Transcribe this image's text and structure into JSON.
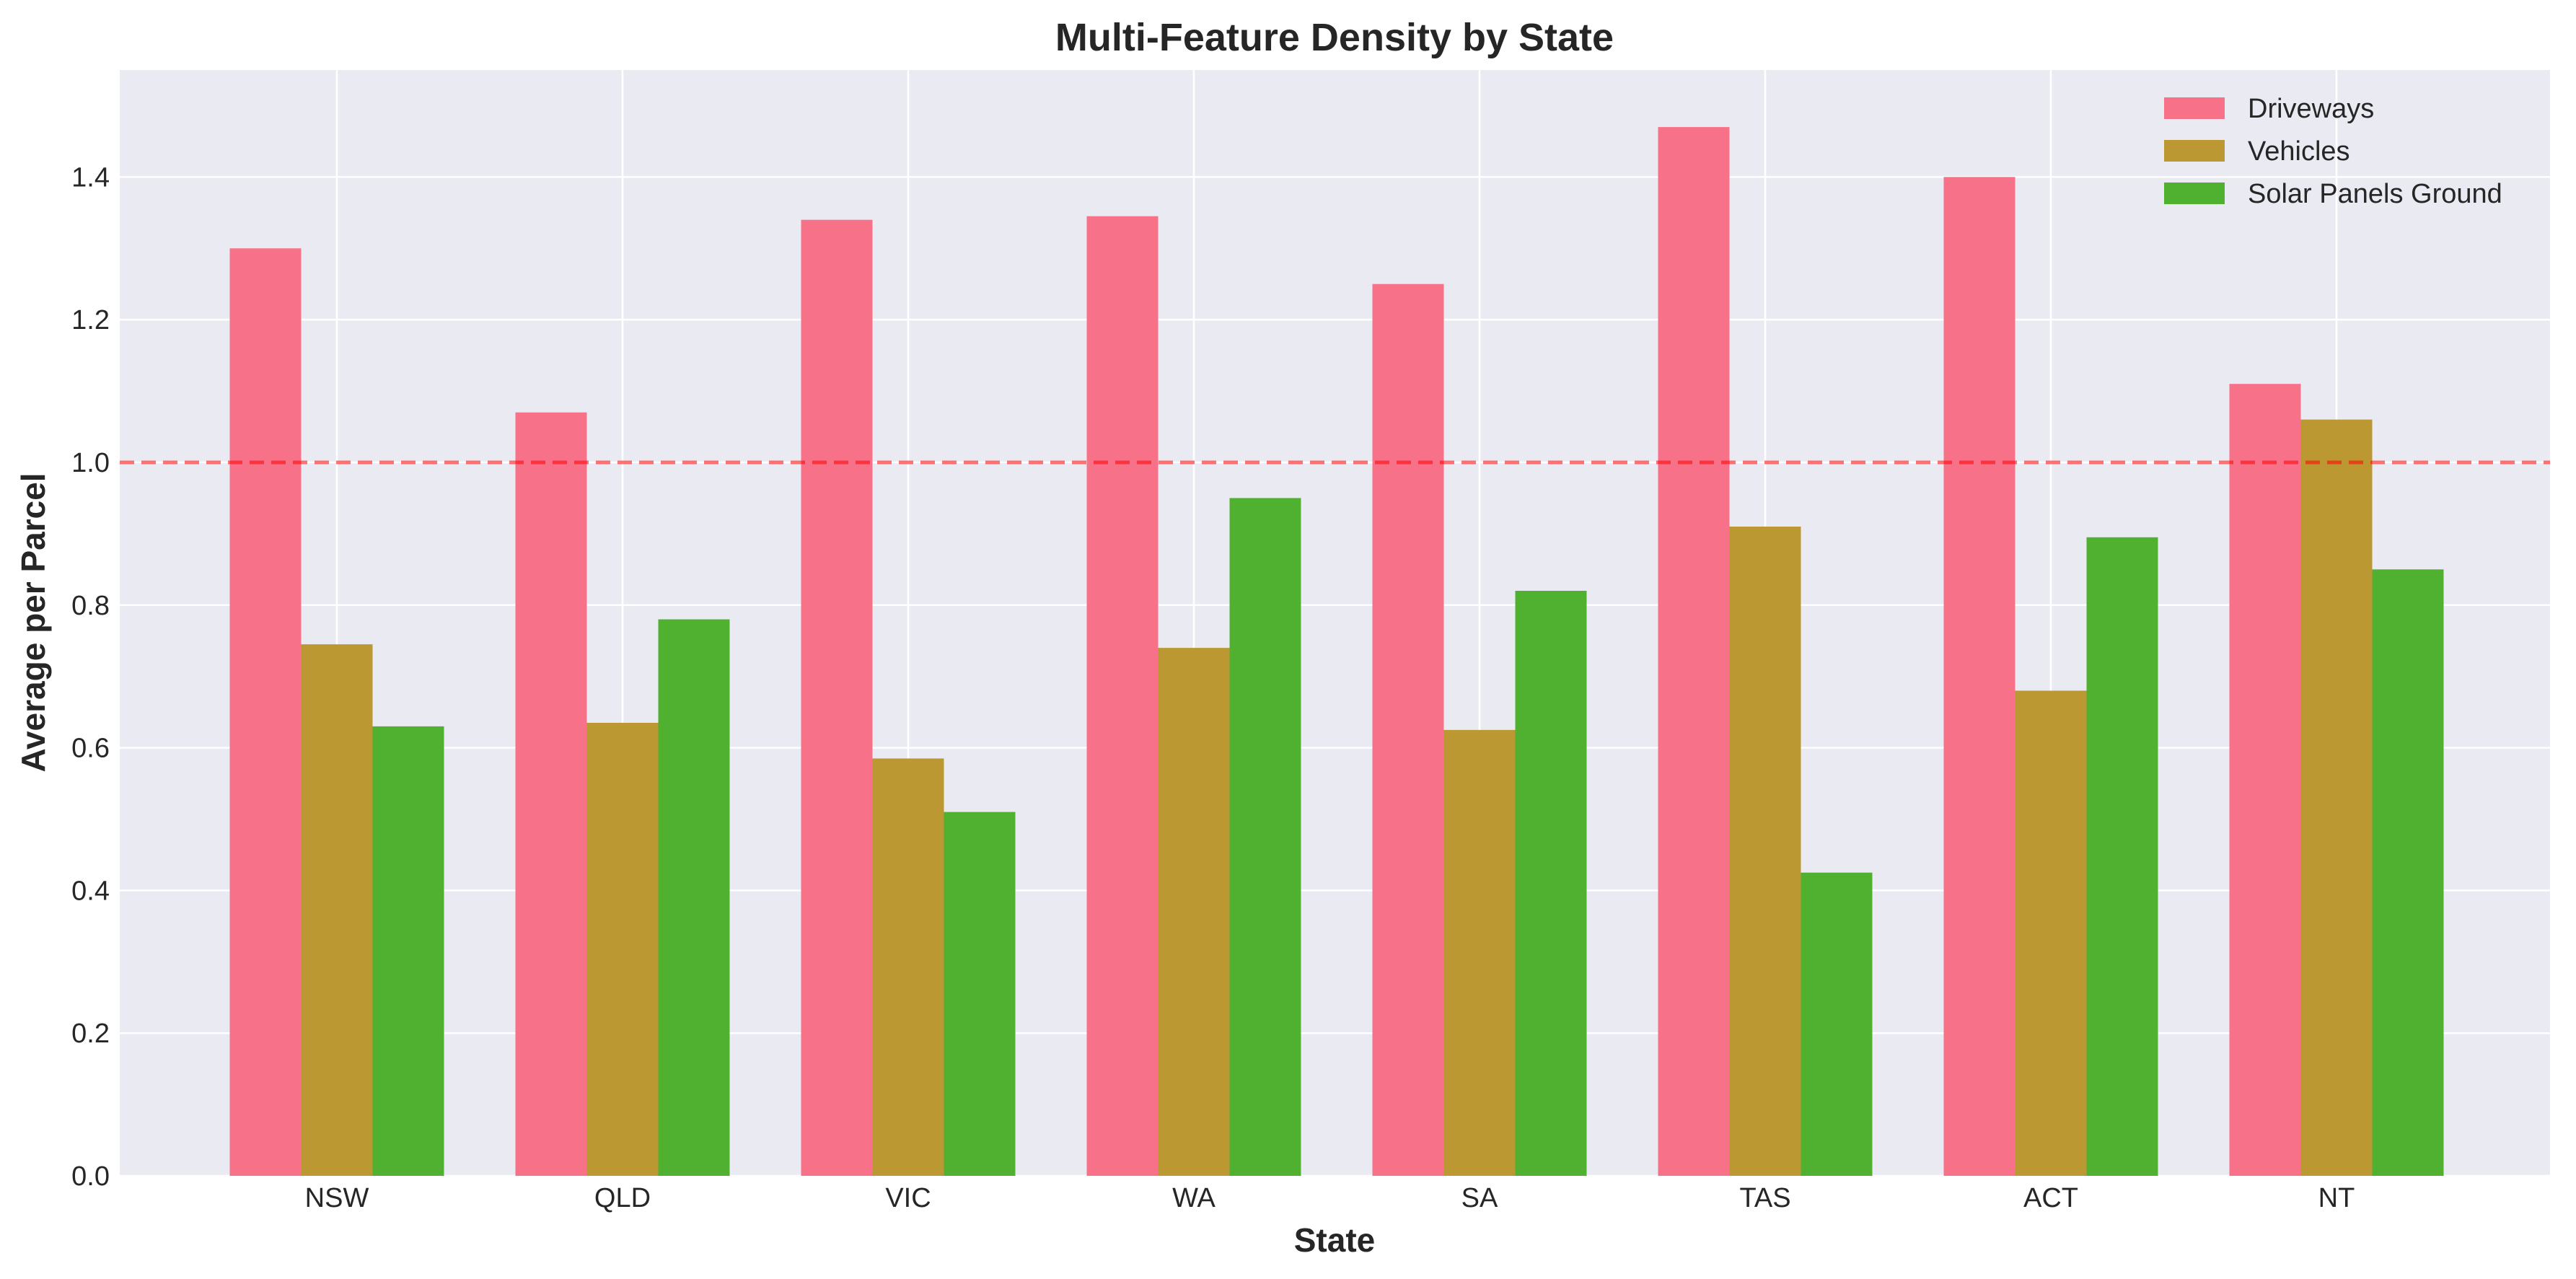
{
  "chart_data": {
    "type": "bar",
    "title": "Multi-Feature Density by State",
    "xlabel": "State",
    "ylabel": "Average per Parcel",
    "categories": [
      "NSW",
      "QLD",
      "VIC",
      "WA",
      "SA",
      "TAS",
      "ACT",
      "NT"
    ],
    "series": [
      {
        "name": "Driveways",
        "color": "#f77189",
        "values": [
          1.3,
          1.07,
          1.34,
          1.345,
          1.25,
          1.47,
          1.4,
          1.11
        ]
      },
      {
        "name": "Vehicles",
        "color": "#bb9832",
        "values": [
          0.745,
          0.635,
          0.585,
          0.74,
          0.625,
          0.91,
          0.68,
          1.06
        ]
      },
      {
        "name": "Solar Panels Ground",
        "color": "#50b131",
        "values": [
          0.63,
          0.78,
          0.51,
          0.95,
          0.82,
          0.425,
          0.895,
          0.85
        ]
      }
    ],
    "ylim": [
      0,
      1.55
    ],
    "yticks": [
      0.0,
      0.2,
      0.4,
      0.6,
      0.8,
      1.0,
      1.2,
      1.4
    ],
    "ytick_labels": [
      "0.0",
      "0.2",
      "0.4",
      "0.6",
      "0.8",
      "1.0",
      "1.2",
      "1.4"
    ],
    "reference_line": {
      "y": 1.0,
      "color": "#ff0000",
      "style": "dashed"
    },
    "grid": true,
    "legend_position": "top-right",
    "background_color": "#eaeaf2"
  }
}
